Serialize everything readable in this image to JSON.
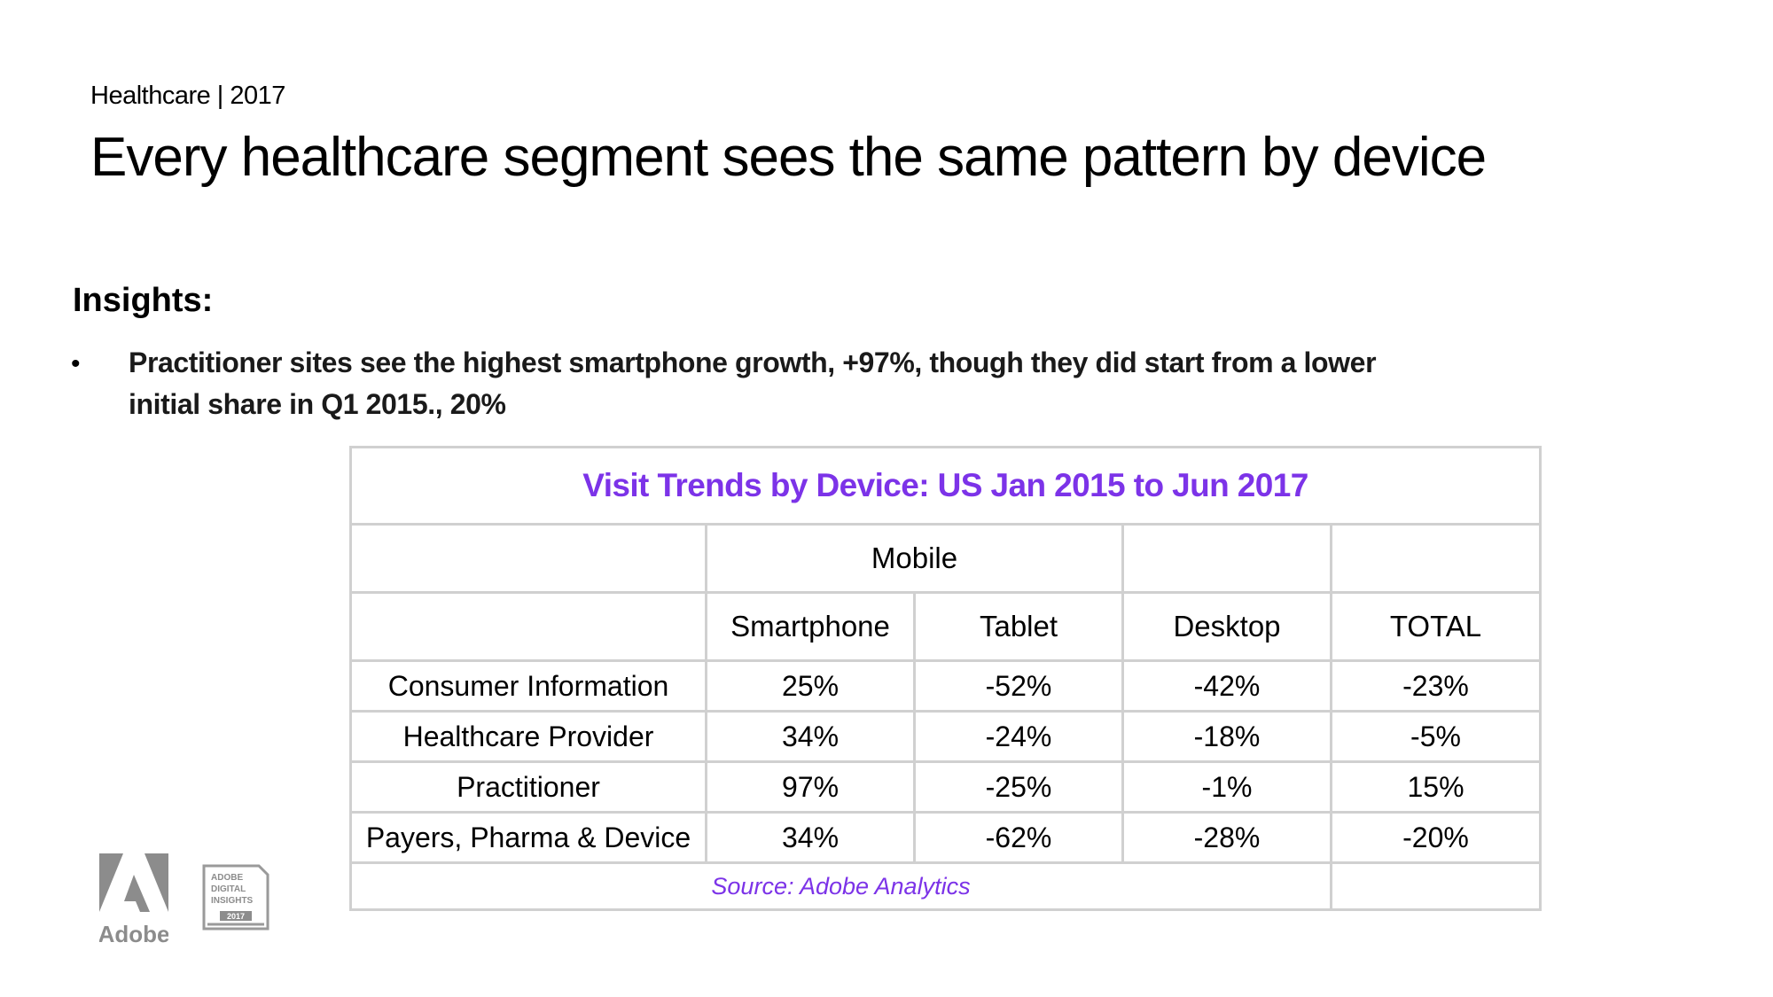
{
  "header": {
    "eyebrow": "Healthcare | 2017",
    "title": "Every healthcare segment sees the same pattern by device"
  },
  "insights": {
    "heading": "Insights:",
    "bullet_symbol": "•",
    "bullets": [
      "Practitioner sites see the highest smartphone growth, +97%, though they did start from a lower initial share in Q1 2015., 20%"
    ]
  },
  "table": {
    "caption": "Visit Trends by Device: US Jan 2015 to Jun 2017",
    "group_header": "Mobile",
    "columns": [
      "Smartphone",
      "Tablet",
      "Desktop",
      "TOTAL"
    ],
    "rows": [
      {
        "label": "Consumer Information",
        "values": [
          "25%",
          "-52%",
          "-42%",
          "-23%"
        ]
      },
      {
        "label": "Healthcare Provider",
        "values": [
          "34%",
          "-24%",
          "-18%",
          "-5%"
        ]
      },
      {
        "label": "Practitioner",
        "values": [
          "97%",
          "-25%",
          "-1%",
          "15%"
        ]
      },
      {
        "label": "Payers, Pharma & Device",
        "values": [
          "34%",
          "-62%",
          "-28%",
          "-20%"
        ]
      }
    ],
    "source": "Source: Adobe Analytics"
  },
  "logos": {
    "adobe_wordmark": "Adobe",
    "badge_lines": [
      "ADOBE",
      "DIGITAL",
      "INSIGHTS",
      "2017"
    ]
  },
  "colors": {
    "accent": "#7c33e8",
    "grid": "#d0d0d0",
    "logo_gray": "#8c8c8c"
  }
}
